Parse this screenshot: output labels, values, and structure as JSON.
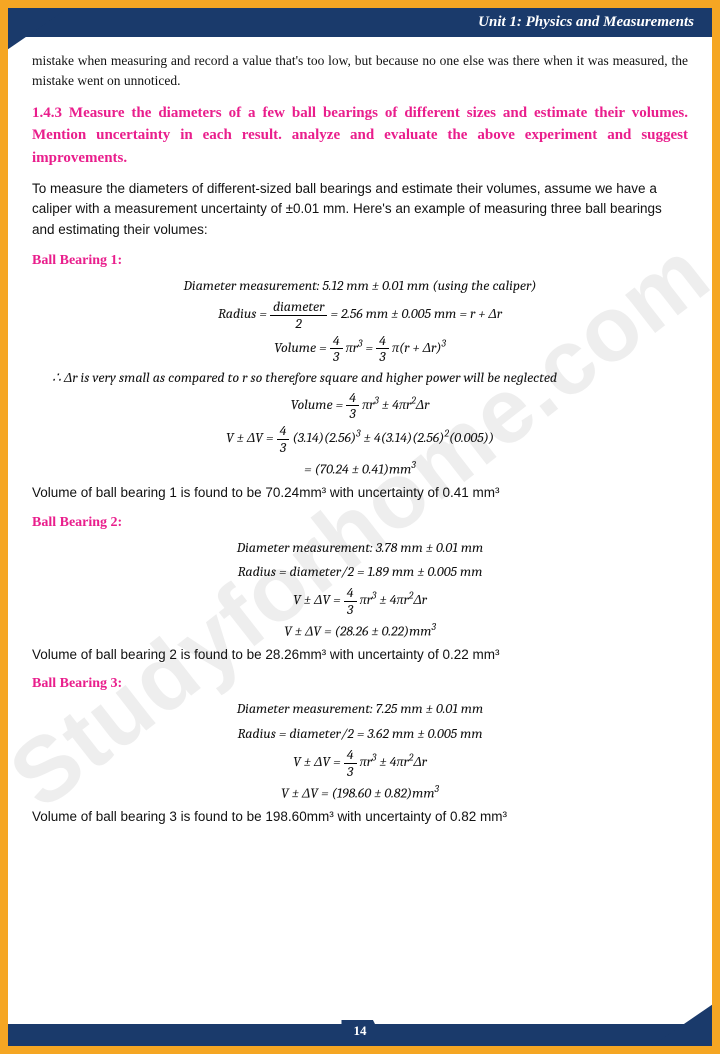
{
  "header": {
    "title": "Unit 1: Physics and Measurements"
  },
  "watermark": "Studyforhome.com",
  "intro_para": "mistake when measuring and record a value that's too low, but because no one else was there when it was measured, the mistake went on unnoticed.",
  "heading143": "1.4.3 Measure the diameters of a few ball bearings of different sizes and estimate their volumes. Mention uncertainty in each result. analyze and evaluate the above experiment and suggest improvements.",
  "intro_text": "To measure the diameters of different-sized ball bearings and estimate their volumes, assume we have a caliper with a measurement uncertainty of ±0.01 mm. Here's an example of measuring three ball bearings and estimating their volumes:",
  "bb1": {
    "label": "Ball Bearing 1:",
    "diam_line": "Diameter measurement: 5.12 mm  ±  0.01 mm (using the caliper)",
    "radius_pre": "Radius  = ",
    "radius_post": " =  2.56 mm  ±  0.005 mm = r + Δr",
    "vol_formula_a": "Volume = ",
    "vol_formula_b": "π(r + Δr)",
    "neglect": "∴ Δr is very small as compared to r so therefore square and higher power will be neglected",
    "vol_approx_a": "Volume = ",
    "vdv_a": "V ± ΔV = ",
    "vdv_b": "(3.14)(2.56)",
    "vdv_c": " ± 4(3.14)(2.56)",
    "vdv_d": "(0.005))",
    "vdv_res": "= (70.24 ± 0.41)mm",
    "result": "Volume of ball bearing 1 is found to be 70.24mm³ with uncertainty of 0.41 mm³"
  },
  "bb2": {
    "label": "Ball Bearing 2:",
    "diam_line": "Diameter measurement: 3.78 mm  ±  0.01 mm",
    "radius_line": "Radius  =  diameter/2  =  1.89 mm  ±  0.005 mm",
    "vdv_a": "V ± ΔV = ",
    "vdv_res": "V ± ΔV = (28.26  ± 0.22)mm",
    "result": "Volume of ball bearing 2 is found to be 28.26mm³ with uncertainty of 0.22 mm³"
  },
  "bb3": {
    "label": "Ball Bearing 3:",
    "diam_line": "Diameter measurement: 7.25 mm  ±  0.01 mm",
    "radius_line": "Radius  =  diameter/2  =  3.62 mm  ±  0.005 mm",
    "vdv_a": "V ± ΔV = ",
    "vdv_res": "V ± ΔV = (198.60  ± 0.82)mm",
    "result": "Volume of ball bearing 3 is found to be 198.60mm³ with uncertainty of 0.82 mm³"
  },
  "formula_common": {
    "frac_diam_n": "diameter",
    "frac_diam_d": "2",
    "four_thirds_n": "4",
    "four_thirds_d": "3",
    "pir3": "πr",
    "plus4pir2dr": " ± 4πr",
    "dr": "Δr"
  },
  "page_number": "14",
  "colors": {
    "frame": "#f5a623",
    "bar": "#1a3a6b",
    "pink": "#e91e8c",
    "text": "#111111",
    "watermark": "rgba(150,150,150,0.16)"
  }
}
